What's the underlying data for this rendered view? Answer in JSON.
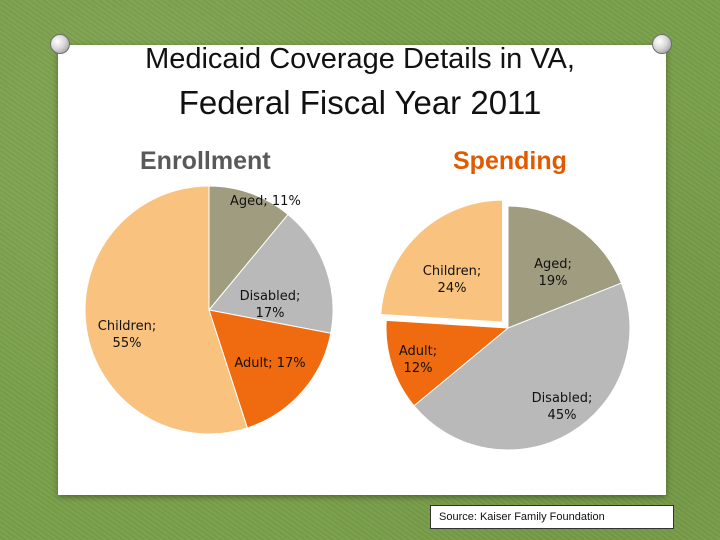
{
  "title_line1": "Medicaid Coverage Details in VA,",
  "title_line2": "Federal Fiscal Year 2011",
  "colors": {
    "Aged": "#a09c80",
    "Disabled": "#b9b9b9",
    "Adult": "#f06a10",
    "Children": "#f9c37f"
  },
  "chart_data": [
    {
      "type": "pie",
      "title": "Enrollment",
      "slices": [
        {
          "label": "Aged",
          "value": 11,
          "text_line1": "Aged; 11%",
          "text_line2": ""
        },
        {
          "label": "Disabled",
          "value": 17,
          "text_line1": "Disabled;",
          "text_line2": "17%"
        },
        {
          "label": "Adult",
          "value": 17,
          "text_line1": "Adult; 17%",
          "text_line2": ""
        },
        {
          "label": "Children",
          "value": 55,
          "text_line1": "Children;",
          "text_line2": "55%"
        }
      ]
    },
    {
      "type": "pie",
      "title": "Spending",
      "slices": [
        {
          "label": "Aged",
          "value": 19,
          "text_line1": "Aged;",
          "text_line2": "19%"
        },
        {
          "label": "Disabled",
          "value": 45,
          "text_line1": "Disabled;",
          "text_line2": "45%"
        },
        {
          "label": "Adult",
          "value": 12,
          "text_line1": "Adult;",
          "text_line2": "12%"
        },
        {
          "label": "Children",
          "value": 24,
          "text_line1": "Children;",
          "text_line2": "24%"
        }
      ]
    }
  ],
  "source": "Source: Kaiser Family Foundation"
}
